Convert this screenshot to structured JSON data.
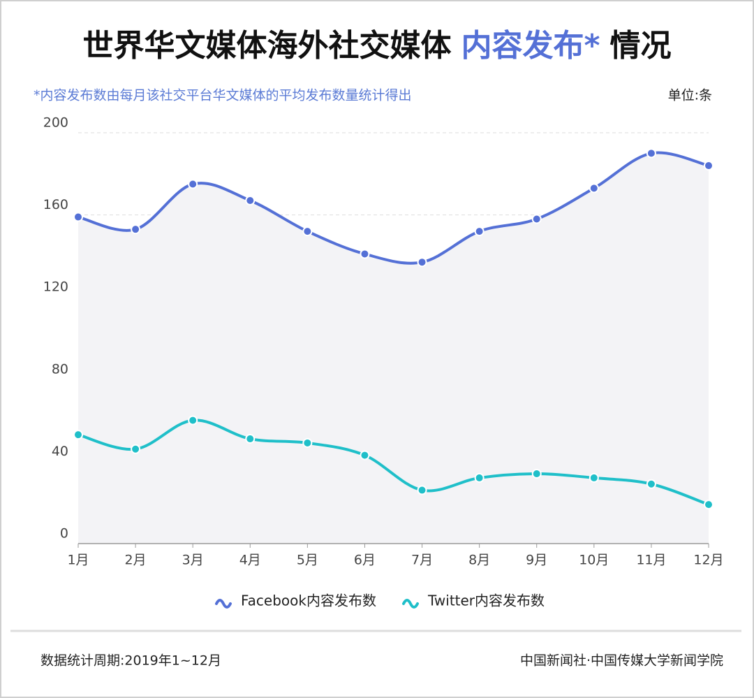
{
  "chart_data": {
    "type": "line",
    "title_prefix": "世界华文媒体海外社交媒体",
    "title_highlight": "内容发布*",
    "title_suffix": "情况",
    "subtitle": "*内容发布数由每月该社交平台华文媒体的平均发布数量统计得出",
    "unit": "单位:条",
    "categories": [
      "1月",
      "2月",
      "3月",
      "4月",
      "5月",
      "6月",
      "7月",
      "8月",
      "9月",
      "10月",
      "11月",
      "12月"
    ],
    "series": [
      {
        "name": "Facebook内容发布数",
        "color": "#5470d6",
        "values": [
          159,
          153,
          175,
          167,
          152,
          141,
          137,
          152,
          158,
          173,
          190,
          184
        ]
      },
      {
        "name": "Twitter内容发布数",
        "color": "#1fbfc9",
        "values": [
          53,
          46,
          60,
          51,
          49,
          43,
          26,
          32,
          34,
          32,
          29,
          19
        ]
      }
    ],
    "ylim": [
      0,
      200
    ],
    "yticks": [
      0,
      40,
      80,
      120,
      160,
      200
    ],
    "grid": true,
    "footer_left": "数据统计周期:2019年1~12月",
    "footer_right": "中国新闻社·中国传媒大学新闻学院"
  }
}
